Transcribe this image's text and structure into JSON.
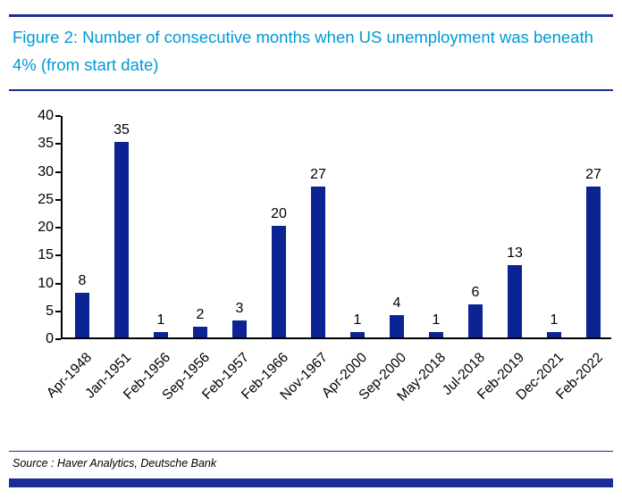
{
  "title": "Figure 2: Number of consecutive months when US unemployment was beneath 4% (from start date)",
  "source": "Source : Haver Analytics, Deutsche Bank",
  "colors": {
    "bar": "#0c2493",
    "title": "#0099d4",
    "rule": "#1a2f96"
  },
  "chart_data": {
    "type": "bar",
    "title": "Figure 2: Number of consecutive months when US unemployment was beneath 4% (from start date)",
    "categories": [
      "Apr-1948",
      "Jan-1951",
      "Feb-1956",
      "Sep-1956",
      "Feb-1957",
      "Feb-1966",
      "Nov-1967",
      "Apr-2000",
      "Sep-2000",
      "May-2018",
      "Jul-2018",
      "Feb-2019",
      "Dec-2021",
      "Feb-2022"
    ],
    "values": [
      8,
      35,
      1,
      2,
      3,
      20,
      27,
      1,
      4,
      1,
      6,
      13,
      1,
      27
    ],
    "xlabel": "",
    "ylabel": "",
    "ylim": [
      0,
      40
    ],
    "yticks": [
      0,
      5,
      10,
      15,
      20,
      25,
      30,
      35,
      40
    ],
    "grid": false,
    "legend": false,
    "data_labels": true,
    "x_tick_rotation": 45
  }
}
